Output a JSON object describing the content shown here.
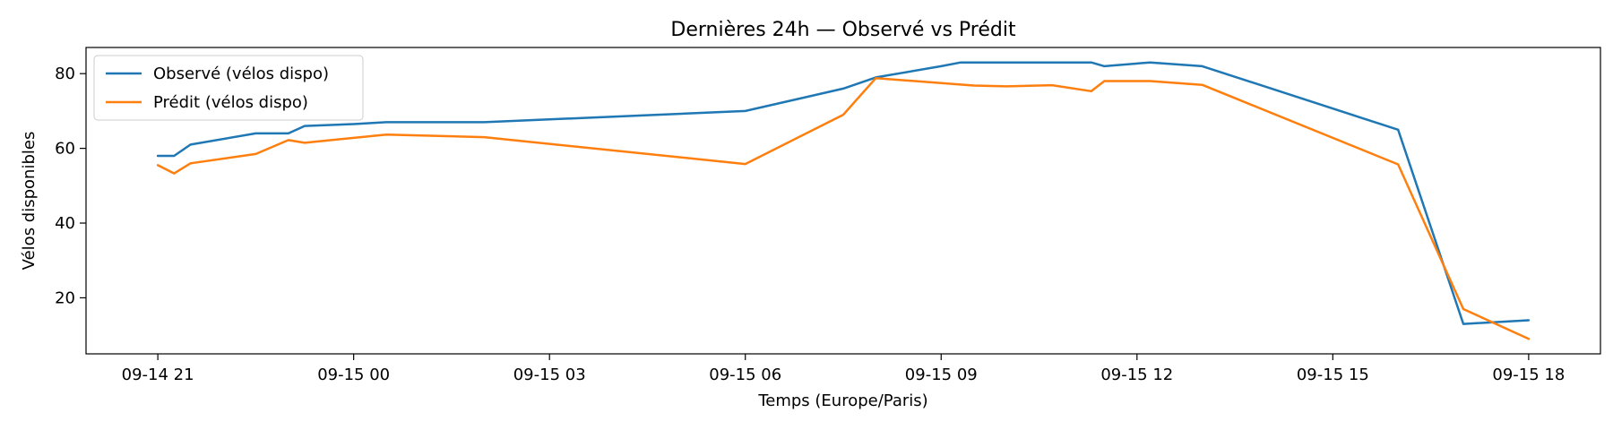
{
  "chart_data": {
    "type": "line",
    "title": "Dernières 24h — Observé vs Prédit",
    "xlabel": "Temps (Europe/Paris)",
    "ylabel": "Vélos disponibles",
    "x_tick_labels": [
      "09-14 21",
      "09-15 00",
      "09-15 03",
      "09-15 06",
      "09-15 09",
      "09-15 12",
      "09-15 15",
      "09-15 18"
    ],
    "x_tick_hours": [
      21,
      24,
      27,
      30,
      33,
      36,
      39,
      42
    ],
    "y_ticks": [
      20,
      40,
      60,
      80
    ],
    "xlim_hours": [
      19.9,
      43.1
    ],
    "ylim": [
      5,
      87
    ],
    "grid": false,
    "legend_position": "top-left",
    "series": [
      {
        "name": "Observé (vélos dispo)",
        "color": "#1f77b4",
        "points": [
          {
            "t": 21.0,
            "y": 58
          },
          {
            "t": 21.25,
            "y": 58
          },
          {
            "t": 21.5,
            "y": 61
          },
          {
            "t": 22.5,
            "y": 64
          },
          {
            "t": 23.0,
            "y": 64
          },
          {
            "t": 23.25,
            "y": 66
          },
          {
            "t": 24.0,
            "y": 66.5
          },
          {
            "t": 24.5,
            "y": 67
          },
          {
            "t": 26.0,
            "y": 67
          },
          {
            "t": 30.0,
            "y": 70
          },
          {
            "t": 31.5,
            "y": 76
          },
          {
            "t": 32.0,
            "y": 79
          },
          {
            "t": 33.0,
            "y": 82
          },
          {
            "t": 33.3,
            "y": 83
          },
          {
            "t": 35.0,
            "y": 83
          },
          {
            "t": 35.3,
            "y": 83
          },
          {
            "t": 35.5,
            "y": 82
          },
          {
            "t": 36.2,
            "y": 83
          },
          {
            "t": 37.0,
            "y": 82
          },
          {
            "t": 40.0,
            "y": 65
          },
          {
            "t": 41.0,
            "y": 13
          },
          {
            "t": 42.0,
            "y": 14
          }
        ]
      },
      {
        "name": "Prédit (vélos dispo)",
        "color": "#ff7f0e",
        "points": [
          {
            "t": 21.0,
            "y": 55.5
          },
          {
            "t": 21.25,
            "y": 53.3
          },
          {
            "t": 21.5,
            "y": 56
          },
          {
            "t": 22.5,
            "y": 58.5
          },
          {
            "t": 23.0,
            "y": 62.2
          },
          {
            "t": 23.25,
            "y": 61.5
          },
          {
            "t": 24.5,
            "y": 63.7
          },
          {
            "t": 26.0,
            "y": 63
          },
          {
            "t": 30.0,
            "y": 55.8
          },
          {
            "t": 31.5,
            "y": 69
          },
          {
            "t": 32.0,
            "y": 78.8
          },
          {
            "t": 33.5,
            "y": 76.8
          },
          {
            "t": 34.0,
            "y": 76.6
          },
          {
            "t": 34.7,
            "y": 76.9
          },
          {
            "t": 35.3,
            "y": 75.3
          },
          {
            "t": 35.5,
            "y": 78
          },
          {
            "t": 36.2,
            "y": 78
          },
          {
            "t": 37.0,
            "y": 77
          },
          {
            "t": 40.0,
            "y": 55.7
          },
          {
            "t": 41.0,
            "y": 17
          },
          {
            "t": 42.0,
            "y": 9
          }
        ]
      }
    ]
  }
}
